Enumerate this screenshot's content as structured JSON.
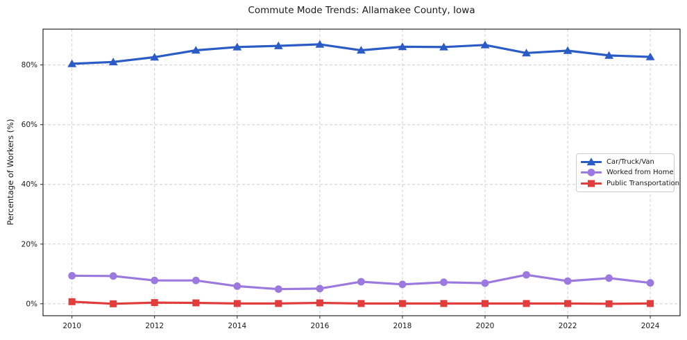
{
  "chart_data": {
    "type": "line",
    "title": "Commute Mode Trends: Allamakee County, Iowa",
    "xlabel": "",
    "ylabel": "Percentage of Workers (%)",
    "x": [
      2010,
      2011,
      2012,
      2013,
      2014,
      2015,
      2016,
      2017,
      2018,
      2019,
      2020,
      2021,
      2022,
      2023,
      2024
    ],
    "xticks": [
      2010,
      2012,
      2014,
      2016,
      2018,
      2020,
      2022,
      2024
    ],
    "xtick_labels": [
      "2010",
      "2012",
      "2014",
      "2016",
      "2018",
      "2020",
      "2022",
      "2024"
    ],
    "yticks": [
      0,
      20,
      40,
      60,
      80
    ],
    "ytick_labels": [
      "0%",
      "20%",
      "40%",
      "60%",
      "80%"
    ],
    "xlim": [
      2009.3,
      2024.72
    ],
    "ylim": [
      -4,
      92
    ],
    "grid": "dashed, both axes",
    "legend_position": "center-right inside axes",
    "series": [
      {
        "name": "Car/Truck/Van",
        "marker": "triangle",
        "color": "#2b5cc5",
        "values": [
          80.4,
          81.0,
          82.6,
          84.9,
          86.0,
          86.4,
          86.9,
          84.9,
          86.1,
          86.0,
          86.7,
          84.0,
          84.8,
          83.2,
          82.7
        ]
      },
      {
        "name": "Worked from Home",
        "marker": "circle",
        "color": "#9b79de",
        "values": [
          9.4,
          9.3,
          7.8,
          7.8,
          5.9,
          4.9,
          5.1,
          7.4,
          6.5,
          7.2,
          6.9,
          9.7,
          7.6,
          8.6,
          7.0
        ]
      },
      {
        "name": "Public Transportation",
        "marker": "square",
        "color": "#e23d3d",
        "values": [
          0.7,
          0.0,
          0.4,
          0.3,
          0.1,
          0.1,
          0.3,
          0.1,
          0.1,
          0.1,
          0.1,
          0.1,
          0.1,
          0.0,
          0.1
        ]
      }
    ],
    "colors": {
      "grid": "#cfcfcf",
      "spine": "#262626",
      "tick_text": "#1a1a1a",
      "background": "#ffffff"
    }
  }
}
